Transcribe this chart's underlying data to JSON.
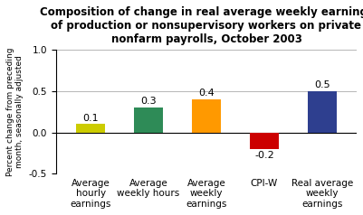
{
  "title": "Composition of change in real average weekly earnings\nof production or nonsupervisory workers on private\nnonfarm payrolls, October 2003",
  "categories": [
    "Average\nhourly\nearnings",
    "Average\nweekly hours",
    "Average\nweekly\nearnings",
    "CPI-W",
    "Real average\nweekly\nearnings"
  ],
  "values": [
    0.1,
    0.3,
    0.4,
    -0.2,
    0.5
  ],
  "bar_colors": [
    "#cccc00",
    "#2e8b57",
    "#ff9900",
    "#cc0000",
    "#2e3f8f"
  ],
  "ylabel": "Percent change from preceding\nmonth, seasonally adjusted",
  "ylim": [
    -0.5,
    1.0
  ],
  "yticks": [
    -0.5,
    0.0,
    0.5,
    1.0
  ],
  "background_color": "#ffffff",
  "title_fontsize": 8.5,
  "label_fontsize": 7.5,
  "value_fontsize": 8
}
